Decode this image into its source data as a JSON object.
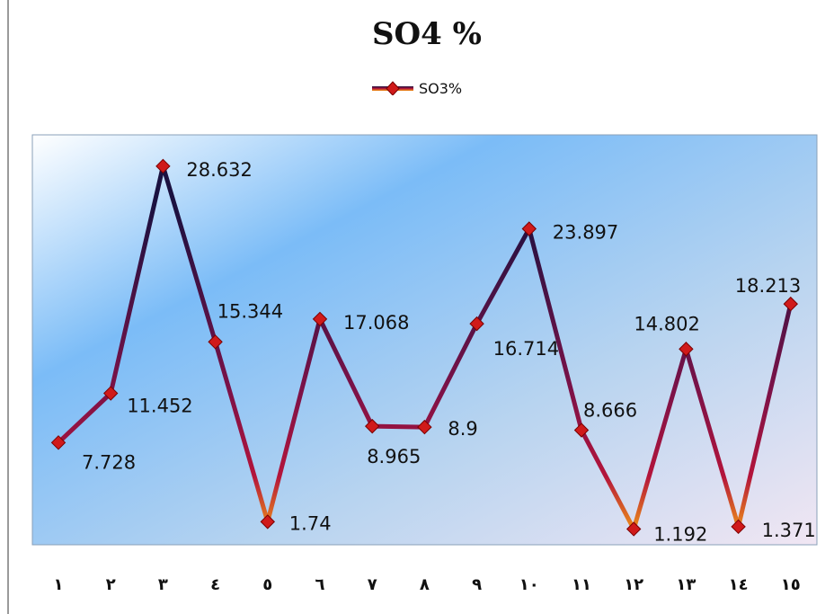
{
  "chart_data": {
    "type": "line",
    "title": "SO4 %",
    "legend": "top",
    "categories": [
      "١",
      "٢",
      "٣",
      "٤",
      "٥",
      "٦",
      "٧",
      "٨",
      "٩",
      "١٠",
      "١١",
      "١٢",
      "١٣",
      "١٤",
      "١٥"
    ],
    "series": [
      {
        "name": "SO3%",
        "values": [
          7.728,
          11.452,
          28.632,
          15.344,
          1.74,
          17.068,
          8.965,
          8.9,
          16.714,
          23.897,
          8.666,
          1.192,
          14.802,
          1.371,
          18.213
        ]
      }
    ],
    "data_labels": [
      "7.728",
      "11.452",
      "28.632",
      "15.344",
      "1.74",
      "17.068",
      "8.965",
      "8.9",
      "16.714",
      "23.897",
      "8.666",
      "1.192",
      "14.802",
      "1.371",
      "18.213"
    ],
    "ylim": [
      0,
      31
    ],
    "grid": false,
    "colors": {
      "line_high": "#1b1140",
      "line_mid": "#7a1248",
      "line_low": "#f39a16",
      "marker": "#d01a1a",
      "marker_edge": "#7a0000",
      "plot_bg_dark": "#7bbcf7",
      "plot_bg_light": "#f1e6f3"
    }
  }
}
